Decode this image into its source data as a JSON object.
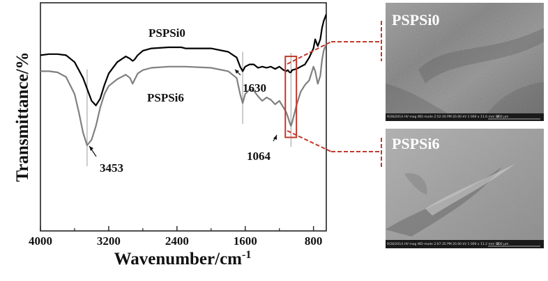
{
  "chart_data": {
    "type": "line",
    "xlabel": "Wavenumber/cm",
    "xlabel_sup": "-1",
    "ylabel": "Transmittance/%",
    "xlim": [
      4000,
      650
    ],
    "ylim": [
      0,
      100
    ],
    "x_reversed": true,
    "xticks": [
      4000,
      3200,
      2400,
      1600,
      800
    ],
    "yticks_labeled": false,
    "grid": false,
    "series": [
      {
        "name": "PSPSi0",
        "color": "#000000",
        "x": [
          4000,
          3900,
          3800,
          3700,
          3600,
          3500,
          3450,
          3400,
          3350,
          3300,
          3250,
          3200,
          3100,
          3000,
          2950,
          2920,
          2900,
          2860,
          2800,
          2700,
          2500,
          2350,
          2300,
          2000,
          1800,
          1700,
          1660,
          1630,
          1600,
          1550,
          1500,
          1450,
          1400,
          1350,
          1300,
          1250,
          1200,
          1150,
          1120,
          1100,
          1080,
          1064,
          1050,
          1000,
          950,
          900,
          850,
          800,
          780,
          750,
          720,
          700,
          680,
          660,
          650
        ],
        "y": [
          77.0,
          77.5,
          77.5,
          77.0,
          74.0,
          67.0,
          62.0,
          57.0,
          55.0,
          58.0,
          64.0,
          69.0,
          74.0,
          76.5,
          75.5,
          74.5,
          75.0,
          77.0,
          79.0,
          80.0,
          80.5,
          80.5,
          80.0,
          80.0,
          78.5,
          76.0,
          72.0,
          70.0,
          72.0,
          73.0,
          73.0,
          71.5,
          72.0,
          71.5,
          72.0,
          71.0,
          72.0,
          70.5,
          70.0,
          70.5,
          69.5,
          69.5,
          70.5,
          71.0,
          72.0,
          73.0,
          76.0,
          80.0,
          84.0,
          81.0,
          84.0,
          89.0,
          92.0,
          94.0,
          95.0
        ]
      },
      {
        "name": "PSPSi6",
        "color": "#808080",
        "x": [
          4000,
          3900,
          3800,
          3700,
          3600,
          3550,
          3500,
          3453,
          3400,
          3350,
          3300,
          3250,
          3200,
          3100,
          3000,
          2950,
          2920,
          2900,
          2860,
          2800,
          2700,
          2500,
          2300,
          2000,
          1800,
          1700,
          1660,
          1630,
          1600,
          1550,
          1500,
          1450,
          1400,
          1350,
          1300,
          1250,
          1200,
          1150,
          1120,
          1100,
          1080,
          1064,
          1050,
          1000,
          950,
          900,
          850,
          800,
          780,
          750,
          720,
          700,
          680,
          660,
          650
        ],
        "y": [
          70.0,
          70.0,
          69.5,
          67.5,
          60.0,
          52.0,
          43.0,
          37.5,
          40.0,
          46.0,
          54.0,
          60.0,
          63.5,
          66.5,
          68.5,
          67.0,
          64.5,
          66.0,
          69.0,
          70.5,
          71.5,
          72.0,
          72.0,
          71.5,
          70.0,
          67.0,
          60.0,
          56.0,
          60.0,
          62.0,
          61.5,
          59.0,
          57.0,
          58.5,
          57.5,
          55.5,
          57.0,
          54.0,
          52.0,
          50.0,
          47.5,
          46.0,
          47.5,
          55.0,
          61.0,
          64.0,
          66.0,
          72.0,
          70.0,
          64.5,
          68.0,
          75.0,
          79.0,
          81.0,
          82.0
        ]
      }
    ],
    "peak_markers": [
      3453,
      1630,
      1064
    ],
    "annotations": [
      "PSPSi0",
      "PSPSi6",
      "1630",
      "3453",
      "1064"
    ],
    "highlight_band": [
      1130,
      1000
    ]
  },
  "sem_images": [
    {
      "title": "PSPSi0",
      "info_bar": "9/28/2014 HV mag WD mode 2:52:16 PM 20.00 kV 1 000 x 11.6 mm SE",
      "scale_text": "100 µm"
    },
    {
      "title": "PSPSi6",
      "info_bar": "9/28/2014 HV mag WD mode 2:07:35 PM 20.00 kV 1 000 x 11.2 mm SE",
      "scale_text": "100 µm"
    }
  ],
  "colors": {
    "callout": "#c0392b",
    "sem_dark": "#5a5a5a",
    "sem_light": "#a8a8a8"
  }
}
